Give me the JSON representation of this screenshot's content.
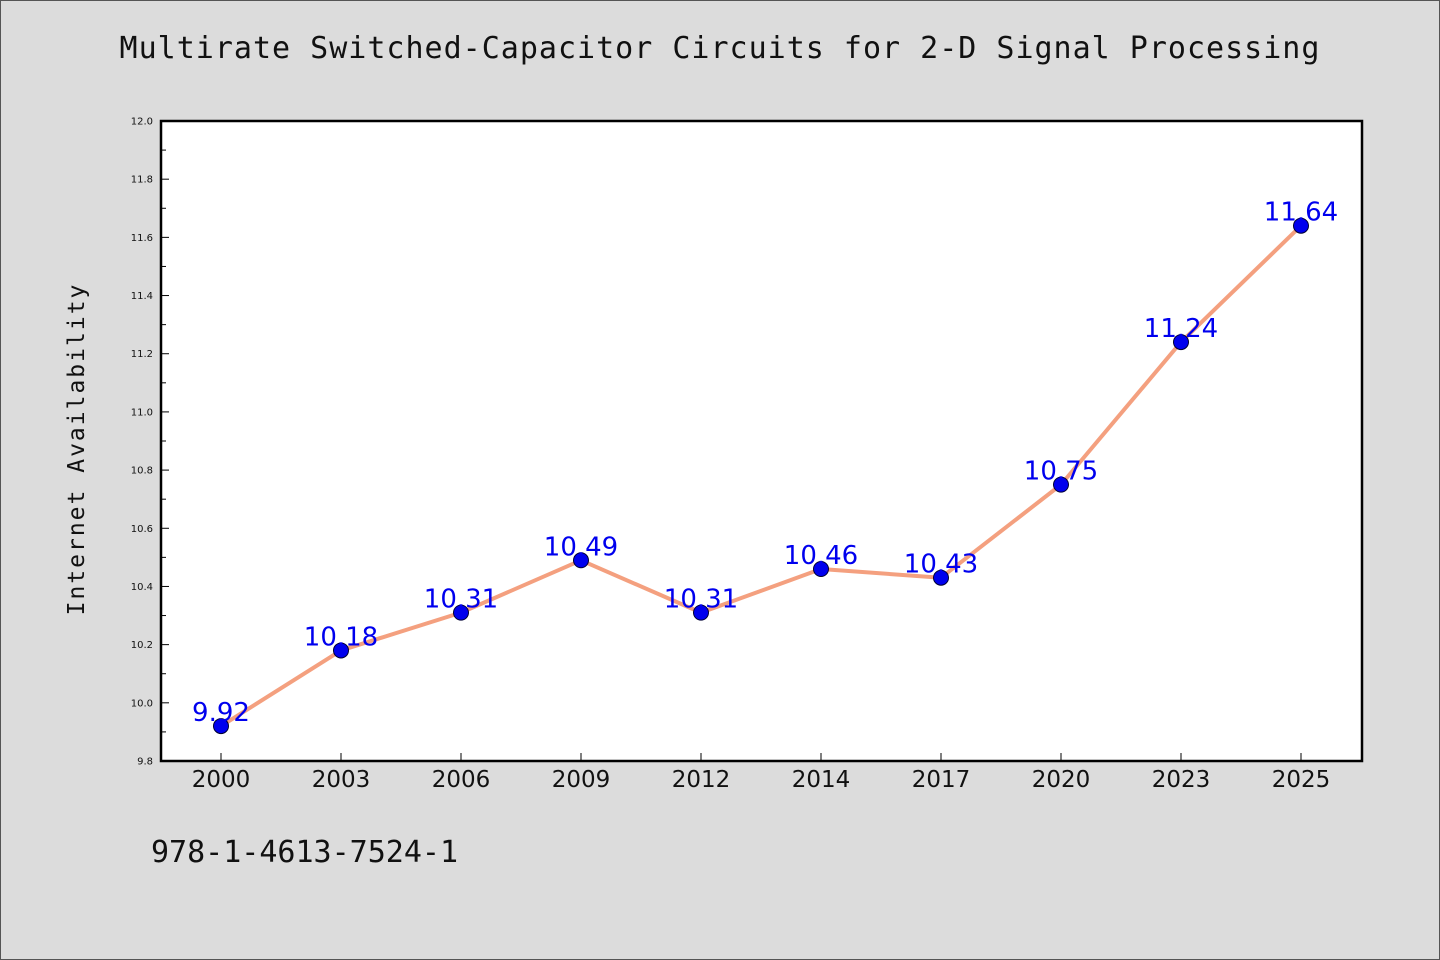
{
  "chart_data": {
    "type": "line",
    "title": "Multirate Switched-Capacitor Circuits for 2-D Signal Processing",
    "ylabel": "Internet Availability",
    "xlabel": "",
    "categories": [
      "2000",
      "2003",
      "2006",
      "2009",
      "2012",
      "2014",
      "2017",
      "2020",
      "2023",
      "2025"
    ],
    "values": [
      9.92,
      10.18,
      10.31,
      10.49,
      10.31,
      10.46,
      10.43,
      10.75,
      11.24,
      11.64
    ],
    "data_labels": [
      "9.92",
      "10.18",
      "10.31",
      "10.49",
      "10.31",
      "10.46",
      "10.43",
      "10.75",
      "11.24",
      "11.64"
    ],
    "ylim": [
      9.8,
      12.0
    ],
    "yticks": [
      "9.8",
      "10.0",
      "10.2",
      "10.4",
      "10.6",
      "10.8",
      "11.0",
      "11.2",
      "11.4",
      "11.6",
      "11.8",
      "12.0"
    ],
    "ytick_values": [
      9.8,
      10.0,
      10.2,
      10.4,
      10.6,
      10.8,
      11.0,
      11.2,
      11.4,
      11.6,
      11.8,
      12.0
    ],
    "grid": false,
    "legend": "none",
    "line_color": "#f4a07f",
    "marker_color": "#0000ee",
    "label_color": "#0000ee"
  },
  "footer": {
    "code": "978-1-4613-7524-1"
  }
}
